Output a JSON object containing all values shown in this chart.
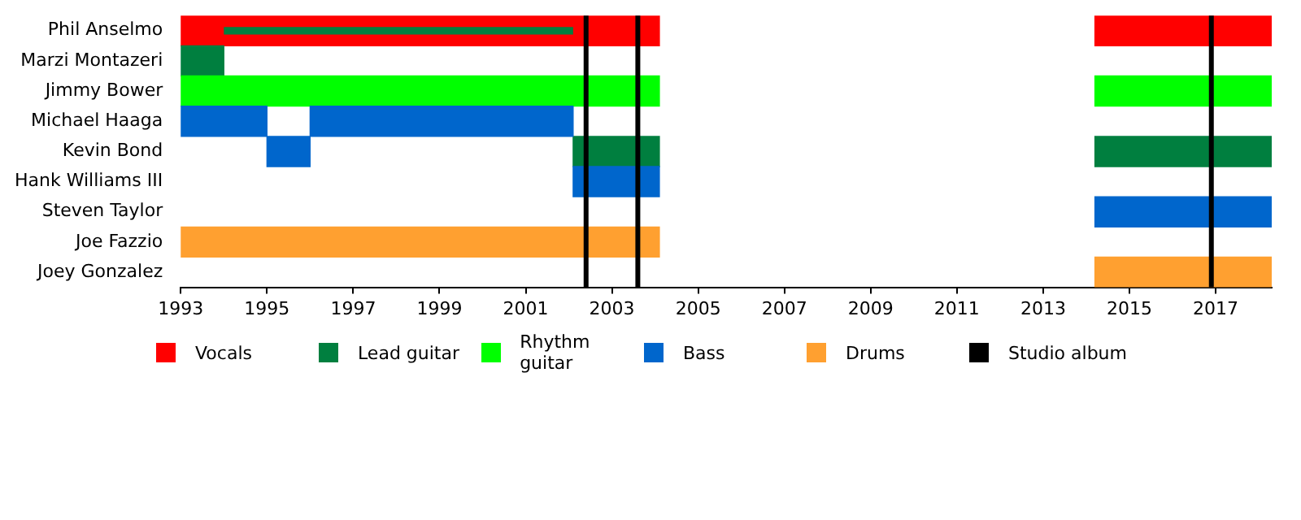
{
  "chart_data": {
    "type": "bar",
    "orientation": "horizontal",
    "categories": [
      "Phil Anselmo",
      "Marzi Montazeri",
      "Jimmy Bower",
      "Michael Haaga",
      "Kevin Bond",
      "Hank Williams III",
      "Steven Taylor",
      "Joe Fazzio",
      "Joey Gonzalez"
    ],
    "xlim": [
      1993,
      2018.3
    ],
    "xticks": [
      1993,
      1995,
      1997,
      1999,
      2001,
      2003,
      2005,
      2007,
      2009,
      2011,
      2013,
      2015,
      2017
    ],
    "grid": false,
    "legend": "bottom",
    "series": [
      {
        "name": "Vocals",
        "color": "#ff0000",
        "base": [
          1993,
          null,
          null,
          null,
          null,
          null,
          null,
          null,
          null
        ],
        "values": [
          11.1,
          null,
          null,
          null,
          null,
          null,
          null,
          null,
          null
        ]
      },
      {
        "color": "#ff0000",
        "base": [
          2014.2,
          null,
          null,
          null,
          null,
          null,
          null,
          null,
          null
        ],
        "values": [
          4.1,
          null,
          null,
          null,
          null,
          null,
          null,
          null,
          null
        ]
      },
      {
        "name": "Lead guitar",
        "color": "#007f3f",
        "base": [
          null,
          1993,
          null,
          null,
          2002.1,
          null,
          null,
          null,
          null
        ],
        "values": [
          null,
          1,
          null,
          null,
          2,
          null,
          null,
          null,
          null
        ]
      },
      {
        "color": "#007f3f",
        "base": [
          null,
          null,
          null,
          null,
          2014.2,
          null,
          null,
          null,
          null
        ],
        "values": [
          null,
          null,
          null,
          null,
          4.1,
          null,
          null,
          null,
          null
        ]
      },
      {
        "color": "#007f3f",
        "base": [
          1994,
          null,
          null,
          null,
          null,
          null,
          null,
          null,
          null
        ],
        "values": [
          8.1,
          null,
          null,
          null,
          null,
          null,
          null,
          null,
          null
        ]
      },
      {
        "name": "Rhythm guitar",
        "color": "#00ff00",
        "base": [
          null,
          null,
          1993,
          null,
          null,
          null,
          null,
          null,
          null
        ],
        "values": [
          null,
          null,
          11.1,
          null,
          null,
          null,
          null,
          null,
          null
        ]
      },
      {
        "color": "#00ff00",
        "base": [
          null,
          null,
          2014.2,
          null,
          null,
          null,
          null,
          null,
          null
        ],
        "values": [
          null,
          null,
          4.1,
          null,
          null,
          null,
          null,
          null,
          null
        ]
      },
      {
        "name": "Bass",
        "color": "#0066cc",
        "base": [
          null,
          null,
          null,
          1993,
          1995,
          2002.1,
          null,
          null,
          null
        ],
        "values": [
          null,
          null,
          null,
          2,
          1,
          2,
          null,
          null,
          null
        ]
      },
      {
        "color": "#0066cc",
        "base": [
          null,
          null,
          null,
          1996,
          null,
          null,
          2014.2,
          null,
          null
        ],
        "values": [
          null,
          null,
          null,
          6.1,
          null,
          null,
          4.1,
          null,
          null
        ]
      },
      {
        "name": "Drums",
        "color": "#ffa030",
        "base": [
          null,
          null,
          null,
          null,
          null,
          null,
          null,
          1993,
          null
        ],
        "values": [
          null,
          null,
          null,
          null,
          null,
          null,
          null,
          11.1,
          null
        ]
      },
      {
        "color": "#ffa030",
        "base": [
          null,
          null,
          null,
          null,
          null,
          null,
          null,
          null,
          2014.2
        ],
        "values": [
          null,
          null,
          null,
          null,
          null,
          null,
          null,
          null,
          4.1
        ]
      }
    ],
    "ref_lines": [
      {
        "axis": "x",
        "value": 2002.4,
        "label": "Studio album",
        "color": "#000000"
      },
      {
        "axis": "x",
        "value": 2003.6,
        "color": "#000000"
      },
      {
        "axis": "x",
        "value": 2016.9,
        "color": "#000000"
      }
    ]
  }
}
